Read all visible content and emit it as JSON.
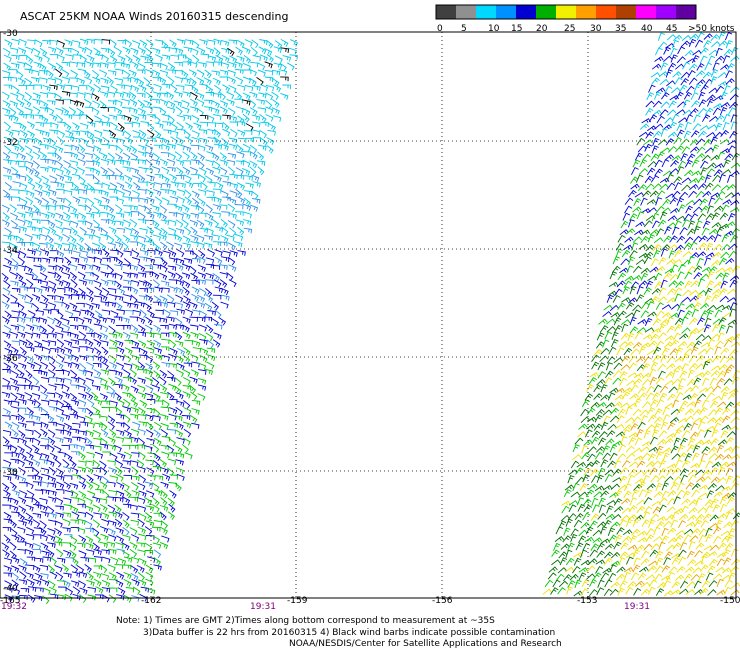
{
  "title": "ASCAT 25KM NOAA Winds 20160315 descending",
  "legend": {
    "ticks": [
      "0",
      "5",
      "10",
      "15",
      "20",
      "25",
      "30",
      "35",
      "40",
      "45",
      ">50 knots"
    ],
    "colors": [
      "#404040",
      "#909090",
      "#00d8ff",
      "#0090ff",
      "#0000d0",
      "#00b000",
      "#f0f000",
      "#ffa000",
      "#ff5000",
      "#b04000",
      "#ff00ff",
      "#a000ff",
      "#6000a0"
    ]
  },
  "grid": {
    "lat_labels": [
      "-30",
      "-32",
      "-34",
      "-36",
      "-38",
      "-40"
    ],
    "lon_labels": [
      "-165",
      "-162",
      "-159",
      "-156",
      "-153",
      "-150"
    ]
  },
  "times": [
    "19:32",
    "19:31",
    "19:31"
  ],
  "notes": {
    "line1": "Note: 1) Times are GMT 2)Times along bottom correspond to measurement at ~35S",
    "line2": "3)Data buffer is 22 hrs from 20160315 4) Black wind barbs indicate possible contamination",
    "line3": "NOAA/NESDIS/Center for Satellite Applications and Research"
  },
  "palette": {
    "light_blue": "#00c8e8",
    "mid_blue": "#3090e8",
    "dark_blue": "#0000d8",
    "green": "#00c800",
    "dark_green": "#007000",
    "yellow": "#f0e000",
    "orange": "#e8a000",
    "contaminated": "#000000"
  }
}
